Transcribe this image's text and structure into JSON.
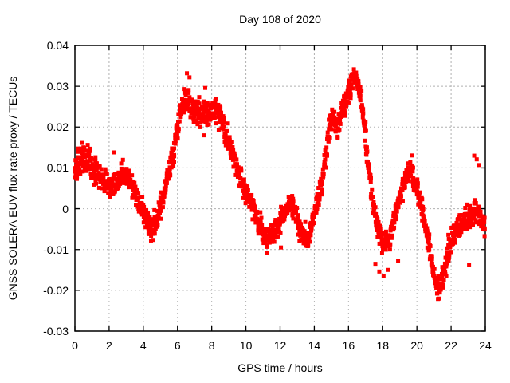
{
  "header": {
    "title": "Day 108 of 2020"
  },
  "axes": {
    "x": {
      "label": "GPS time / hours",
      "min": 0,
      "max": 24,
      "tick_step": 2,
      "tick_labels": [
        "0",
        "2",
        "4",
        "6",
        "8",
        "10",
        "12",
        "14",
        "16",
        "18",
        "20",
        "22",
        "24"
      ]
    },
    "y": {
      "label": "GNSS SOLERA EUV flux rate proxy / TECUs",
      "min": -0.03,
      "max": 0.04,
      "tick_step": 0.01,
      "tick_labels": [
        "0.04",
        "0.03",
        "0.02",
        "0.01",
        "0",
        "-0.01",
        "-0.02",
        "-0.03"
      ]
    }
  },
  "style": {
    "point_color": "#ff0000",
    "axis_color": "#000000",
    "grid_color": "#b0b0b0",
    "text_color": "#000000",
    "background": "#ffffff"
  },
  "chart_data": {
    "type": "scatter",
    "title": "Day 108 of 2020",
    "xlabel": "GPS time / hours",
    "ylabel": "GNSS SOLERA EUV flux rate proxy / TECUs",
    "xlim": [
      0,
      24
    ],
    "ylim": [
      -0.03,
      0.04
    ],
    "grid": true,
    "legend": "none",
    "marker": "filled-square",
    "series": [
      {
        "name": "EUV flux rate proxy",
        "color": "#ff0000",
        "scatter_halfwidth_default": 0.0038,
        "trend_points": [
          [
            0.0,
            0.009,
            0.005
          ],
          [
            0.3,
            0.012,
            0.0055
          ],
          [
            0.6,
            0.013,
            0.006
          ],
          [
            0.9,
            0.011,
            0.0055
          ],
          [
            1.2,
            0.009,
            0.005
          ],
          [
            1.5,
            0.008,
            0.0045
          ],
          [
            1.8,
            0.0065,
            0.004
          ],
          [
            2.1,
            0.005,
            0.004
          ],
          [
            2.35,
            0.006,
            0.004
          ],
          [
            2.6,
            0.008,
            0.004
          ],
          [
            2.9,
            0.0085,
            0.004
          ],
          [
            3.2,
            0.007,
            0.004
          ],
          [
            3.5,
            0.004,
            0.004
          ],
          [
            3.8,
            0.001,
            0.004
          ],
          [
            4.1,
            -0.002,
            0.0038
          ],
          [
            4.4,
            -0.0045,
            0.0035
          ],
          [
            4.6,
            -0.005,
            0.0035
          ],
          [
            4.8,
            -0.003,
            0.0035
          ],
          [
            5.0,
            0.0,
            0.0038
          ],
          [
            5.2,
            0.004,
            0.004
          ],
          [
            5.5,
            0.009,
            0.0045
          ],
          [
            5.8,
            0.015,
            0.005
          ],
          [
            6.0,
            0.02,
            0.005
          ],
          [
            6.2,
            0.0245,
            0.005
          ],
          [
            6.45,
            0.0265,
            0.0045
          ],
          [
            6.7,
            0.0265,
            0.005
          ],
          [
            7.0,
            0.024,
            0.005
          ],
          [
            7.3,
            0.023,
            0.0052
          ],
          [
            7.6,
            0.0235,
            0.0055
          ],
          [
            7.9,
            0.023,
            0.0055
          ],
          [
            8.15,
            0.024,
            0.005
          ],
          [
            8.4,
            0.0235,
            0.0048
          ],
          [
            8.65,
            0.021,
            0.0045
          ],
          [
            8.9,
            0.017,
            0.0042
          ],
          [
            9.2,
            0.014,
            0.004
          ],
          [
            9.5,
            0.01,
            0.004
          ],
          [
            9.8,
            0.006,
            0.004
          ],
          [
            10.1,
            0.003,
            0.0038
          ],
          [
            10.4,
            0.0,
            0.0038
          ],
          [
            10.7,
            -0.003,
            0.0038
          ],
          [
            11.0,
            -0.006,
            0.0038
          ],
          [
            11.25,
            -0.0075,
            0.0038
          ],
          [
            11.5,
            -0.0065,
            0.0038
          ],
          [
            11.8,
            -0.005,
            0.0038
          ],
          [
            12.1,
            -0.002,
            0.0038
          ],
          [
            12.4,
            0.0005,
            0.0038
          ],
          [
            12.6,
            0.002,
            0.0038
          ],
          [
            12.85,
            -0.0005,
            0.0038
          ],
          [
            13.1,
            -0.004,
            0.0038
          ],
          [
            13.35,
            -0.007,
            0.0036
          ],
          [
            13.55,
            -0.0075,
            0.0036
          ],
          [
            13.8,
            -0.005,
            0.0036
          ],
          [
            14.0,
            -0.002,
            0.0036
          ],
          [
            14.2,
            0.002,
            0.0038
          ],
          [
            14.45,
            0.007,
            0.004
          ],
          [
            14.7,
            0.014,
            0.0042
          ],
          [
            14.9,
            0.02,
            0.0042
          ],
          [
            15.05,
            0.0225,
            0.004
          ],
          [
            15.25,
            0.0205,
            0.004
          ],
          [
            15.45,
            0.021,
            0.004
          ],
          [
            15.7,
            0.0245,
            0.0042
          ],
          [
            15.95,
            0.028,
            0.0042
          ],
          [
            16.2,
            0.031,
            0.0042
          ],
          [
            16.45,
            0.0315,
            0.004
          ],
          [
            16.65,
            0.029,
            0.004
          ],
          [
            16.85,
            0.023,
            0.004
          ],
          [
            17.05,
            0.015,
            0.004
          ],
          [
            17.25,
            0.007,
            0.004
          ],
          [
            17.45,
            0.001,
            0.0038
          ],
          [
            17.65,
            -0.004,
            0.0036
          ],
          [
            17.9,
            -0.007,
            0.0036
          ],
          [
            18.15,
            -0.0085,
            0.0036
          ],
          [
            18.4,
            -0.007,
            0.0036
          ],
          [
            18.6,
            -0.004,
            0.0036
          ],
          [
            18.8,
            -0.0005,
            0.0036
          ],
          [
            19.0,
            0.003,
            0.0038
          ],
          [
            19.2,
            0.006,
            0.0038
          ],
          [
            19.45,
            0.009,
            0.0038
          ],
          [
            19.6,
            0.01,
            0.0038
          ],
          [
            19.8,
            0.0075,
            0.0038
          ],
          [
            20.0,
            0.005,
            0.0038
          ],
          [
            20.25,
            0.001,
            0.0038
          ],
          [
            20.5,
            -0.004,
            0.0038
          ],
          [
            20.75,
            -0.01,
            0.0038
          ],
          [
            21.0,
            -0.016,
            0.0038
          ],
          [
            21.2,
            -0.0195,
            0.0038
          ],
          [
            21.35,
            -0.02,
            0.0038
          ],
          [
            21.55,
            -0.016,
            0.004
          ],
          [
            21.8,
            -0.012,
            0.004
          ],
          [
            22.05,
            -0.008,
            0.0042
          ],
          [
            22.3,
            -0.0055,
            0.0044
          ],
          [
            22.6,
            -0.003,
            0.0046
          ],
          [
            22.9,
            -0.0025,
            0.0046
          ],
          [
            23.2,
            -0.001,
            0.0046
          ],
          [
            23.5,
            -0.0005,
            0.0044
          ],
          [
            23.75,
            -0.002,
            0.0042
          ],
          [
            24.0,
            -0.0045,
            0.004
          ]
        ],
        "outliers": [
          [
            2.3,
            0.0138
          ],
          [
            4.45,
            -0.0078
          ],
          [
            6.55,
            0.0332
          ],
          [
            6.7,
            0.0322
          ],
          [
            7.62,
            0.0296
          ],
          [
            12.05,
            -0.0095
          ],
          [
            17.57,
            -0.0135
          ],
          [
            17.8,
            -0.0154
          ],
          [
            18.05,
            -0.0166
          ],
          [
            18.3,
            -0.015
          ],
          [
            18.9,
            -0.0127
          ],
          [
            23.05,
            -0.0138
          ],
          [
            23.35,
            0.013
          ],
          [
            23.5,
            0.0121
          ],
          [
            23.62,
            0.0107
          ]
        ]
      }
    ]
  }
}
